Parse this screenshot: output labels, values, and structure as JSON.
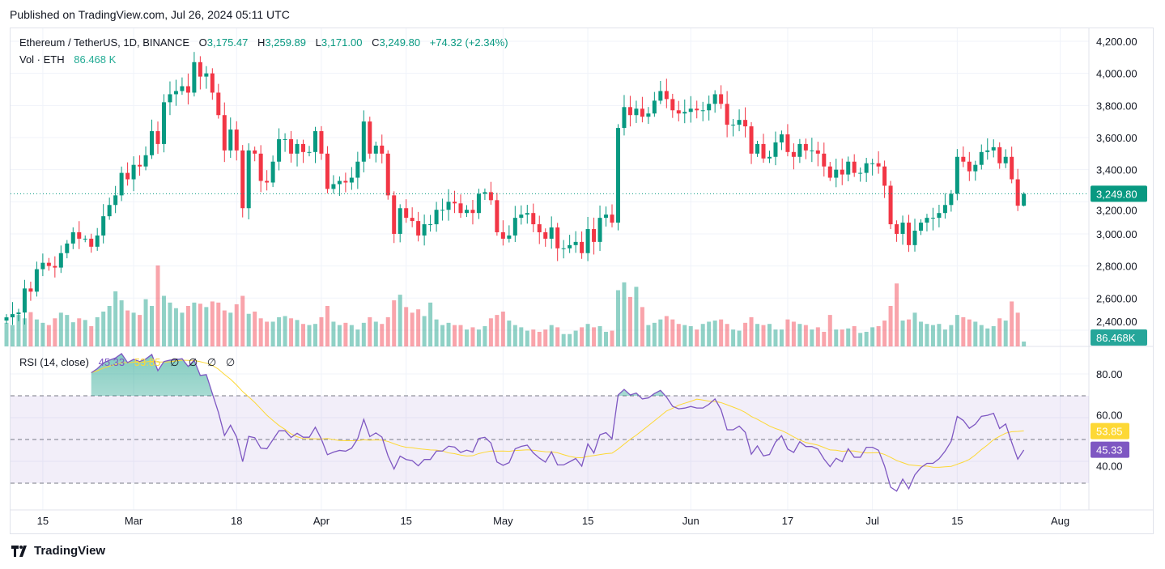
{
  "header": {
    "published": "Published on TradingView.com, Jul 26, 2024 05:11 UTC"
  },
  "legend": {
    "symbol": "Ethereum / TetherUS, 1D, BINANCE",
    "o_label": "O",
    "o": "3,175.47",
    "h_label": "H",
    "h": "3,259.89",
    "l_label": "L",
    "l": "3,171.00",
    "c_label": "C",
    "c": "3,249.80",
    "change": "+74.32 (+2.34%)",
    "vol_label": "Vol · ETH",
    "vol": "86.468 K"
  },
  "rsi_legend": {
    "title": "RSI (14, close)",
    "rsi": "45.33",
    "ma": "53.85",
    "extras": [
      "∅",
      "∅",
      "∅",
      "∅"
    ]
  },
  "footer": {
    "brand": "TradingView"
  },
  "colors": {
    "up": "#089981",
    "down": "#f23645",
    "rsi": "#7e57c2",
    "rsi_ma": "#fdd835"
  },
  "chart_data": {
    "type": "candlestick",
    "title": "Ethereum / TetherUS, 1D, BINANCE",
    "start_date": "2024-02-09",
    "end_date": "2024-07-26",
    "closes": [
      2480,
      2500,
      2510,
      2660,
      2640,
      2780,
      2820,
      2800,
      2790,
      2880,
      2940,
      3010,
      2970,
      2970,
      2920,
      2990,
      3110,
      3180,
      3240,
      3380,
      3340,
      3430,
      3420,
      3490,
      3640,
      3560,
      3820,
      3870,
      3890,
      3920,
      3880,
      4070,
      3980,
      4000,
      3880,
      3740,
      3520,
      3650,
      3520,
      3160,
      3520,
      3500,
      3330,
      3320,
      3450,
      3590,
      3590,
      3500,
      3560,
      3510,
      3510,
      3640,
      3500,
      3280,
      3310,
      3330,
      3320,
      3350,
      3450,
      3700,
      3500,
      3550,
      3500,
      3240,
      3000,
      3160,
      3100,
      3080,
      2990,
      3060,
      3060,
      3150,
      3150,
      3200,
      3190,
      3130,
      3150,
      3130,
      3250,
      3260,
      3210,
      3010,
      2970,
      2990,
      3100,
      3120,
      3130,
      3060,
      3010,
      2970,
      3040,
      2910,
      2910,
      2930,
      2950,
      2880,
      3030,
      2950,
      3100,
      3120,
      3070,
      3660,
      3790,
      3740,
      3780,
      3730,
      3750,
      3830,
      3890,
      3840,
      3770,
      3750,
      3760,
      3780,
      3770,
      3770,
      3810,
      3870,
      3810,
      3680,
      3680,
      3710,
      3670,
      3500,
      3560,
      3470,
      3480,
      3570,
      3620,
      3510,
      3480,
      3560,
      3520,
      3520,
      3500,
      3420,
      3350,
      3400,
      3370,
      3450,
      3380,
      3380,
      3440,
      3440,
      3420,
      3300,
      3060,
      3000,
      3070,
      2930,
      3020,
      3070,
      3100,
      3100,
      3130,
      3180,
      3250,
      3480,
      3450,
      3390,
      3430,
      3510,
      3520,
      3540,
      3440,
      3480,
      3340,
      3175.47,
      3249.8
    ],
    "last": {
      "open": 3175.47,
      "high": 3259.89,
      "low": 3171.0,
      "close": 3249.8
    },
    "volumes_k": [
      420,
      380,
      560,
      500,
      610,
      480,
      420,
      380,
      500,
      600,
      560,
      430,
      500,
      470,
      360,
      520,
      620,
      720,
      980,
      820,
      640,
      600,
      560,
      840,
      720,
      1440,
      900,
      780,
      680,
      600,
      720,
      780,
      760,
      700,
      800,
      780,
      640,
      600,
      750,
      900,
      580,
      620,
      500,
      440,
      440,
      520,
      540,
      500,
      470,
      400,
      380,
      400,
      520,
      720,
      440,
      380,
      420,
      380,
      300,
      420,
      520,
      440,
      400,
      520,
      820,
      920,
      700,
      600,
      660,
      540,
      780,
      480,
      380,
      420,
      380,
      380,
      300,
      340,
      300,
      360,
      500,
      560,
      620,
      460,
      380,
      340,
      280,
      300,
      260,
      300,
      380,
      340,
      220,
      220,
      280,
      340,
      400,
      340,
      360,
      260,
      280,
      1000,
      1140,
      880,
      1060,
      700,
      380,
      420,
      480,
      540,
      480,
      400,
      380,
      360,
      300,
      400,
      440,
      460,
      480,
      400,
      300,
      280,
      420,
      520,
      400,
      380,
      400,
      300,
      300,
      480,
      440,
      400,
      380,
      300,
      340,
      260,
      560,
      300,
      300,
      320,
      360,
      240,
      260,
      340,
      360,
      460,
      720,
      1120,
      460,
      480,
      600,
      440,
      400,
      380,
      400,
      300,
      380,
      560,
      520,
      480,
      440,
      380,
      320,
      360,
      500,
      460,
      800,
      600,
      86.468
    ],
    "price_ticks": [
      "4,200.00",
      "4,000.00",
      "3,800.00",
      "3,600.00",
      "3,400.00",
      "3,200.00",
      "3,000.00",
      "2,800.00",
      "2,600.00",
      "2,400.00"
    ],
    "price_tick_values": [
      4200,
      4000,
      3800,
      3600,
      3400,
      3200,
      3000,
      2800,
      2600,
      2400
    ],
    "last_price_label": "3,249.80",
    "last_volume_label": "86.468K",
    "rsi_ticks": [
      "80.00",
      "60.00",
      "40.00"
    ],
    "rsi_tick_values": [
      80,
      60,
      40
    ],
    "rsi_levels": [
      70,
      50,
      30
    ],
    "rsi_period": 14,
    "rsi_ma_period": 14,
    "rsi_last_label": "45.33",
    "rsi_ma_last_label": "53.85",
    "x_ticks": [
      {
        "label": "15",
        "day": 6
      },
      {
        "label": "Mar",
        "day": 21
      },
      {
        "label": "18",
        "day": 38
      },
      {
        "label": "Apr",
        "day": 52
      },
      {
        "label": "15",
        "day": 66
      },
      {
        "label": "May",
        "day": 82
      },
      {
        "label": "15",
        "day": 96
      },
      {
        "label": "Jun",
        "day": 113
      },
      {
        "label": "17",
        "day": 129
      },
      {
        "label": "Jul",
        "day": 143
      },
      {
        "label": "15",
        "day": 157
      },
      {
        "label": "Aug",
        "day": 174
      }
    ]
  }
}
